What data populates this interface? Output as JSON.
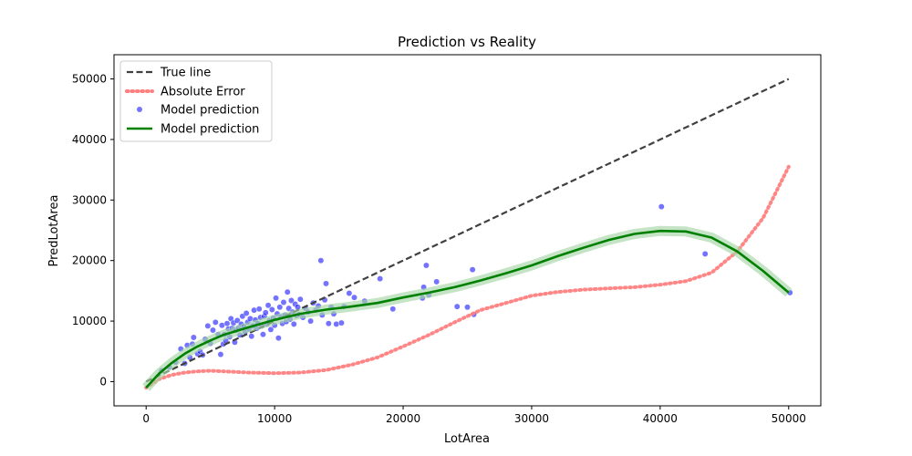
{
  "chart_data": {
    "type": "scatter",
    "title": "Prediction vs Reality",
    "xlabel": "LotArea",
    "ylabel": "PredLotArea",
    "xlim": [
      -2500,
      52500
    ],
    "ylim": [
      -4000,
      54000
    ],
    "x_ticks": [
      0,
      10000,
      20000,
      30000,
      40000,
      50000
    ],
    "y_ticks": [
      0,
      10000,
      20000,
      30000,
      40000,
      50000
    ],
    "grid": false,
    "legend_position": "top-left",
    "colors": {
      "true_line": "#404040",
      "abs_error": "#ff7f7f",
      "scatter": "#0000ff",
      "model_line": "#008000",
      "model_band": "#a6d6a6"
    },
    "legend": [
      {
        "label": "True line",
        "style": "dashed-line"
      },
      {
        "label": "Absolute Error",
        "style": "dotted-line"
      },
      {
        "label": "Model prediction",
        "style": "marker"
      },
      {
        "label": "Model prediction",
        "style": "solid-line"
      }
    ],
    "series": [
      {
        "name": "True line",
        "kind": "line",
        "x": [
          0,
          50000
        ],
        "y": [
          0,
          50000
        ]
      },
      {
        "name": "Absolute Error",
        "kind": "line",
        "x": [
          0,
          1000,
          2000,
          3000,
          4000,
          5000,
          6000,
          8000,
          10000,
          12000,
          14000,
          16000,
          18000,
          20000,
          22000,
          24000,
          26000,
          28000,
          30000,
          32000,
          34000,
          36000,
          38000,
          40000,
          42000,
          44000,
          46000,
          48000,
          50000
        ],
        "y": [
          -1000,
          400,
          1100,
          1500,
          1700,
          1800,
          1700,
          1500,
          1400,
          1500,
          1900,
          2800,
          4000,
          5800,
          7700,
          9800,
          11800,
          13000,
          14200,
          14800,
          15200,
          15400,
          15600,
          16000,
          16600,
          18000,
          21500,
          27000,
          35500
        ]
      },
      {
        "name": "Model prediction",
        "kind": "line",
        "x": [
          0,
          1000,
          2000,
          3000,
          4000,
          5000,
          6000,
          8000,
          10000,
          12000,
          14000,
          16000,
          18000,
          20000,
          22000,
          24000,
          26000,
          28000,
          30000,
          32000,
          34000,
          36000,
          38000,
          40000,
          42000,
          44000,
          46000,
          48000,
          50000
        ],
        "y": [
          -1000,
          1300,
          3100,
          4600,
          5800,
          6800,
          7700,
          9000,
          10200,
          11200,
          11900,
          12400,
          13000,
          13900,
          14700,
          15600,
          16700,
          17900,
          19200,
          20700,
          22100,
          23400,
          24400,
          24900,
          24800,
          23800,
          21500,
          18300,
          14700
        ]
      },
      {
        "name": "Model prediction",
        "kind": "scatter",
        "points": [
          [
            1200,
            1800
          ],
          [
            1800,
            2400
          ],
          [
            2300,
            3200
          ],
          [
            2700,
            5400
          ],
          [
            3000,
            3000
          ],
          [
            3200,
            6000
          ],
          [
            3400,
            4000
          ],
          [
            3600,
            6200
          ],
          [
            3700,
            7300
          ],
          [
            4000,
            4600
          ],
          [
            4200,
            5000
          ],
          [
            4400,
            4400
          ],
          [
            4600,
            7000
          ],
          [
            4800,
            9200
          ],
          [
            5000,
            6300
          ],
          [
            5200,
            8500
          ],
          [
            5400,
            9800
          ],
          [
            5600,
            7800
          ],
          [
            5800,
            4500
          ],
          [
            5900,
            9300
          ],
          [
            6000,
            6200
          ],
          [
            6100,
            7800
          ],
          [
            6200,
            6800
          ],
          [
            6300,
            9600
          ],
          [
            6400,
            8700
          ],
          [
            6500,
            7400
          ],
          [
            6600,
            10400
          ],
          [
            6700,
            8800
          ],
          [
            6800,
            9700
          ],
          [
            6900,
            6500
          ],
          [
            7000,
            8500
          ],
          [
            7100,
            10100
          ],
          [
            7200,
            8900
          ],
          [
            7300,
            7700
          ],
          [
            7400,
            9500
          ],
          [
            7500,
            10800
          ],
          [
            7600,
            9100
          ],
          [
            7700,
            8200
          ],
          [
            7800,
            11300
          ],
          [
            7900,
            9800
          ],
          [
            8000,
            8700
          ],
          [
            8100,
            10400
          ],
          [
            8200,
            7500
          ],
          [
            8300,
            9200
          ],
          [
            8400,
            11800
          ],
          [
            8500,
            10200
          ],
          [
            8600,
            8800
          ],
          [
            8700,
            9600
          ],
          [
            8800,
            12000
          ],
          [
            8900,
            10600
          ],
          [
            9000,
            9200
          ],
          [
            9100,
            7800
          ],
          [
            9200,
            10800
          ],
          [
            9300,
            11400
          ],
          [
            9400,
            9500
          ],
          [
            9500,
            12600
          ],
          [
            9600,
            10100
          ],
          [
            9700,
            8600
          ],
          [
            9800,
            11900
          ],
          [
            9900,
            10500
          ],
          [
            10000,
            9300
          ],
          [
            10100,
            13800
          ],
          [
            10200,
            11200
          ],
          [
            10300,
            7200
          ],
          [
            10400,
            12300
          ],
          [
            10500,
            10700
          ],
          [
            10600,
            9600
          ],
          [
            10700,
            13100
          ],
          [
            10800,
            11000
          ],
          [
            10900,
            9900
          ],
          [
            11000,
            14800
          ],
          [
            11100,
            12100
          ],
          [
            11200,
            10300
          ],
          [
            11300,
            13400
          ],
          [
            11400,
            11500
          ],
          [
            11500,
            9500
          ],
          [
            11600,
            12800
          ],
          [
            11700,
            10900
          ],
          [
            11800,
            12300
          ],
          [
            11900,
            11100
          ],
          [
            12000,
            13600
          ],
          [
            12200,
            10600
          ],
          [
            12400,
            12100
          ],
          [
            12600,
            11500
          ],
          [
            12800,
            10000
          ],
          [
            13000,
            13000
          ],
          [
            13200,
            11800
          ],
          [
            13400,
            12500
          ],
          [
            13600,
            20000
          ],
          [
            13700,
            11000
          ],
          [
            13900,
            13500
          ],
          [
            14000,
            16200
          ],
          [
            14200,
            9600
          ],
          [
            14400,
            12300
          ],
          [
            14600,
            11200
          ],
          [
            14800,
            9500
          ],
          [
            15200,
            9700
          ],
          [
            15400,
            12400
          ],
          [
            15800,
            14600
          ],
          [
            16200,
            13900
          ],
          [
            17000,
            13300
          ],
          [
            18200,
            17000
          ],
          [
            19200,
            12000
          ],
          [
            21500,
            13800
          ],
          [
            21600,
            15600
          ],
          [
            21800,
            19200
          ],
          [
            22000,
            14300
          ],
          [
            22600,
            16500
          ],
          [
            24200,
            12400
          ],
          [
            25000,
            12300
          ],
          [
            25400,
            18500
          ],
          [
            25500,
            11100
          ],
          [
            40100,
            28900
          ],
          [
            43500,
            21100
          ],
          [
            50100,
            14700
          ]
        ]
      }
    ]
  }
}
